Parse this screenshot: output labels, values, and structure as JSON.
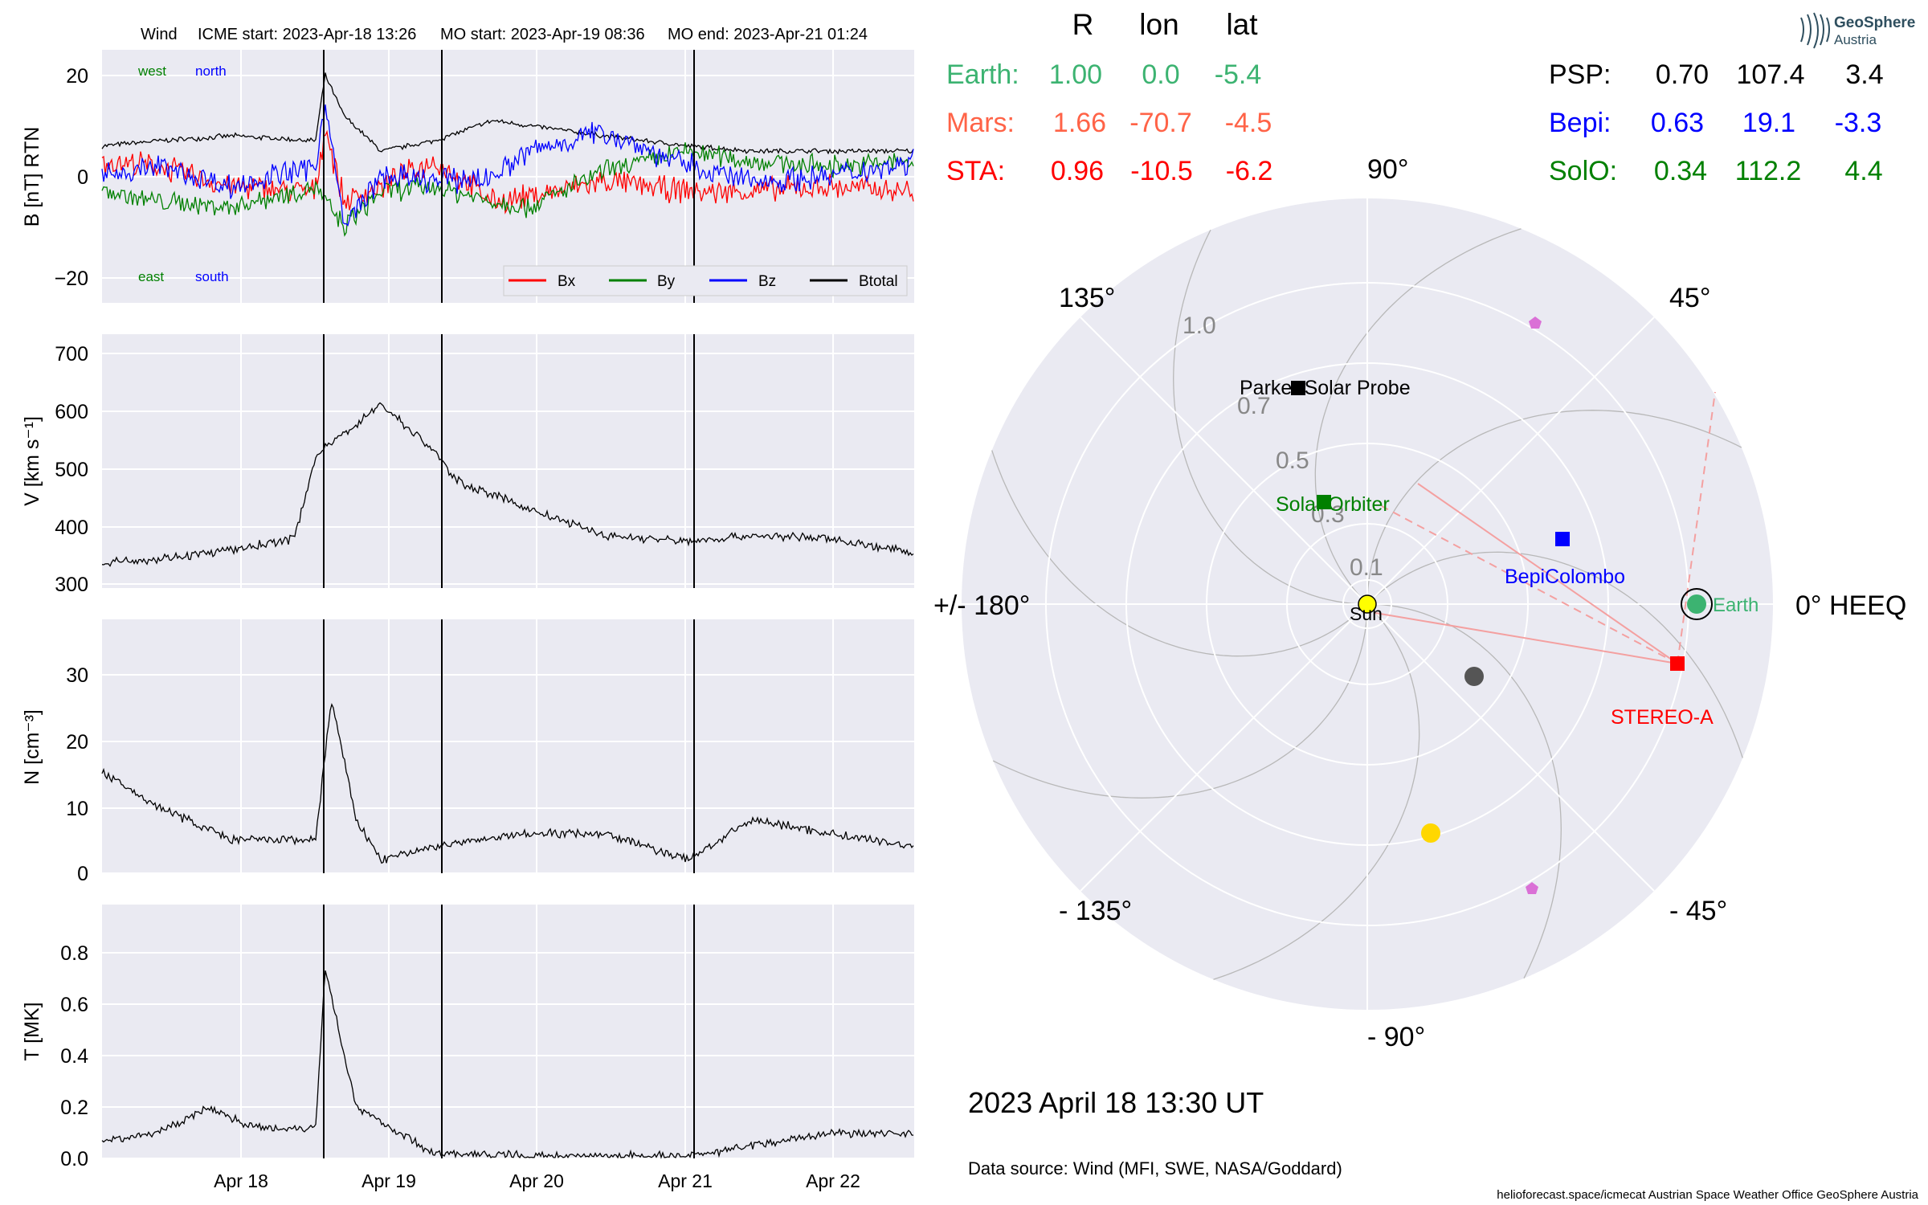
{
  "title_line": {
    "spacecraft": "Wind",
    "icme_start": "ICME start: 2023-Apr-18 13:26",
    "mo_start": "MO start: 2023-Apr-19 08:36",
    "mo_end": "MO end: 2023-Apr-21 01:24"
  },
  "x_ticks": [
    "Apr 18",
    "Apr 19",
    "Apr 20",
    "Apr 21",
    "Apr 22"
  ],
  "panels": {
    "b": {
      "ylabel": "B [nT] RTN",
      "yticks": [
        "20",
        "0",
        "−20"
      ],
      "corner_labels": {
        "west": "west",
        "north": "north",
        "east": "east",
        "south": "south"
      },
      "legend": [
        "Bx",
        "By",
        "Bz",
        "Btotal"
      ]
    },
    "v": {
      "ylabel": "V [km s⁻¹]",
      "yticks": [
        "700",
        "600",
        "500",
        "400",
        "300"
      ]
    },
    "n": {
      "ylabel": "N [cm⁻³]",
      "yticks": [
        "30",
        "20",
        "10",
        "0"
      ]
    },
    "t": {
      "ylabel": "T [MK]",
      "yticks": [
        "0.8",
        "0.6",
        "0.4",
        "0.2",
        "0.0"
      ]
    }
  },
  "table": {
    "headers": [
      "R",
      "lon",
      "lat"
    ],
    "left_rows": [
      {
        "name": "Earth:",
        "r": "1.00",
        "lon": "0.0",
        "lat": "-5.4",
        "color": "#3cb371"
      },
      {
        "name": "Mars:",
        "r": "1.66",
        "lon": "-70.7",
        "lat": "-4.5",
        "color": "#ff6347"
      },
      {
        "name": "STA:",
        "r": "0.96",
        "lon": "-10.5",
        "lat": "-6.2",
        "color": "#ff0000"
      }
    ],
    "right_rows": [
      {
        "name": "PSP:",
        "r": "0.70",
        "lon": "107.4",
        "lat": "3.4",
        "color": "#000000"
      },
      {
        "name": "Bepi:",
        "r": "0.63",
        "lon": "19.1",
        "lat": "-3.3",
        "color": "#0000ff"
      },
      {
        "name": "SolO:",
        "r": "0.34",
        "lon": "112.2",
        "lat": "4.4",
        "color": "#008000"
      }
    ]
  },
  "logo": {
    "line1": "GeoSphere",
    "line2": "Austria"
  },
  "polar": {
    "angle_labels": {
      "a0": "0° HEEQ",
      "a45": "45°",
      "a90": "90°",
      "a135": "135°",
      "a180": "+/- 180°",
      "am135": "- 135°",
      "am90": "- 90°",
      "am45": "- 45°"
    },
    "radial_labels": [
      "1.0",
      "0.7",
      "0.5",
      "0.3",
      "0.1"
    ],
    "bodies": {
      "sun": "Sun",
      "earth": "Earth",
      "stereo_a": "STEREO-A",
      "bepicolombo": "BepiColombo",
      "solar_orbiter": "Solar Orbiter",
      "parker": "Parker Solar Probe"
    }
  },
  "datetime": "2023 April 18  13:30 UT",
  "data_source": "Data source: Wind (MFI, SWE, NASA/Goddard)",
  "footer": "helioforecast.space/icmecat   Austrian Space Weather Office   GeoSphere Austria",
  "colors": {
    "bx": "#ff0000",
    "by": "#008000",
    "bz": "#0000ff",
    "btotal": "#000000",
    "panel_bg": "#eaeaf2"
  },
  "chart_data": [
    {
      "type": "line",
      "title": "Wind    ICME start: 2023-Apr-18 13:26   MO start: 2023-Apr-19 08:36   MO end: 2023-Apr-21 01:24",
      "ylabel": "B [nT] RTN",
      "ylim": [
        -25,
        25
      ],
      "xlim": [
        "2023-04-17 03:00",
        "2023-04-22 14:00"
      ],
      "vertical_lines": [
        "2023-04-18 13:26",
        "2023-04-19 08:36",
        "2023-04-21 01:24"
      ],
      "x": [
        "2023-04-17 03:00",
        "2023-04-17 12:00",
        "2023-04-18 00:00",
        "2023-04-18 13:26",
        "2023-04-18 15:00",
        "2023-04-18 18:00",
        "2023-04-19 00:00",
        "2023-04-19 08:36",
        "2023-04-19 18:00",
        "2023-04-20 00:00",
        "2023-04-20 12:00",
        "2023-04-21 01:24",
        "2023-04-21 12:00",
        "2023-04-22 00:00",
        "2023-04-22 14:00"
      ],
      "series": [
        {
          "name": "Btotal",
          "values": [
            6,
            7,
            8,
            7,
            20,
            12,
            5,
            7,
            11,
            10,
            8,
            6,
            5,
            5,
            5
          ]
        },
        {
          "name": "Bx",
          "values": [
            3,
            2,
            -2,
            -3,
            10,
            -5,
            -2,
            3,
            -5,
            -4,
            -1,
            -3,
            -3,
            -2,
            -3
          ]
        },
        {
          "name": "By",
          "values": [
            -3,
            -5,
            -6,
            -2,
            -5,
            -10,
            -3,
            -2,
            -5,
            -6,
            1,
            5,
            3,
            2,
            3
          ]
        },
        {
          "name": "Bz",
          "values": [
            0,
            2,
            -2,
            2,
            15,
            -10,
            0,
            -1,
            0,
            5,
            9,
            2,
            -1,
            0,
            3
          ]
        }
      ]
    },
    {
      "type": "line",
      "ylabel": "V [km s⁻¹]",
      "ylim": [
        295,
        730
      ],
      "x": [
        "2023-04-17 03:00",
        "2023-04-17 12:00",
        "2023-04-18 00:00",
        "2023-04-18 10:00",
        "2023-04-18 13:26",
        "2023-04-18 18:00",
        "2023-04-19 00:00",
        "2023-04-19 08:36",
        "2023-04-19 12:00",
        "2023-04-19 18:00",
        "2023-04-20 00:00",
        "2023-04-20 12:00",
        "2023-04-21 01:24",
        "2023-04-21 12:00",
        "2023-04-22 00:00",
        "2023-04-22 14:00"
      ],
      "values": [
        340,
        345,
        360,
        380,
        520,
        560,
        610,
        530,
        480,
        455,
        430,
        385,
        375,
        385,
        380,
        355
      ]
    },
    {
      "type": "line",
      "ylabel": "N [cm⁻³]",
      "ylim": [
        0,
        38
      ],
      "x": [
        "2023-04-17 03:00",
        "2023-04-17 12:00",
        "2023-04-18 00:00",
        "2023-04-18 13:26",
        "2023-04-18 16:00",
        "2023-04-18 20:00",
        "2023-04-19 00:00",
        "2023-04-19 08:36",
        "2023-04-20 00:00",
        "2023-04-20 12:00",
        "2023-04-21 01:24",
        "2023-04-21 12:00",
        "2023-04-22 00:00",
        "2023-04-22 14:00"
      ],
      "values": [
        15,
        10,
        5,
        5,
        26,
        8,
        2,
        4,
        6,
        6,
        2,
        8,
        6,
        4
      ]
    },
    {
      "type": "line",
      "ylabel": "T [MK]",
      "ylim": [
        0,
        1.0
      ],
      "x": [
        "2023-04-17 03:00",
        "2023-04-17 12:00",
        "2023-04-17 20:00",
        "2023-04-18 04:00",
        "2023-04-18 13:26",
        "2023-04-18 15:00",
        "2023-04-18 20:00",
        "2023-04-19 08:36",
        "2023-04-20 00:00",
        "2023-04-21 01:24",
        "2023-04-21 12:00",
        "2023-04-22 00:00",
        "2023-04-22 14:00"
      ],
      "values": [
        0.07,
        0.1,
        0.2,
        0.12,
        0.12,
        0.75,
        0.2,
        0.02,
        0.01,
        0.01,
        0.05,
        0.1,
        0.1
      ]
    }
  ]
}
